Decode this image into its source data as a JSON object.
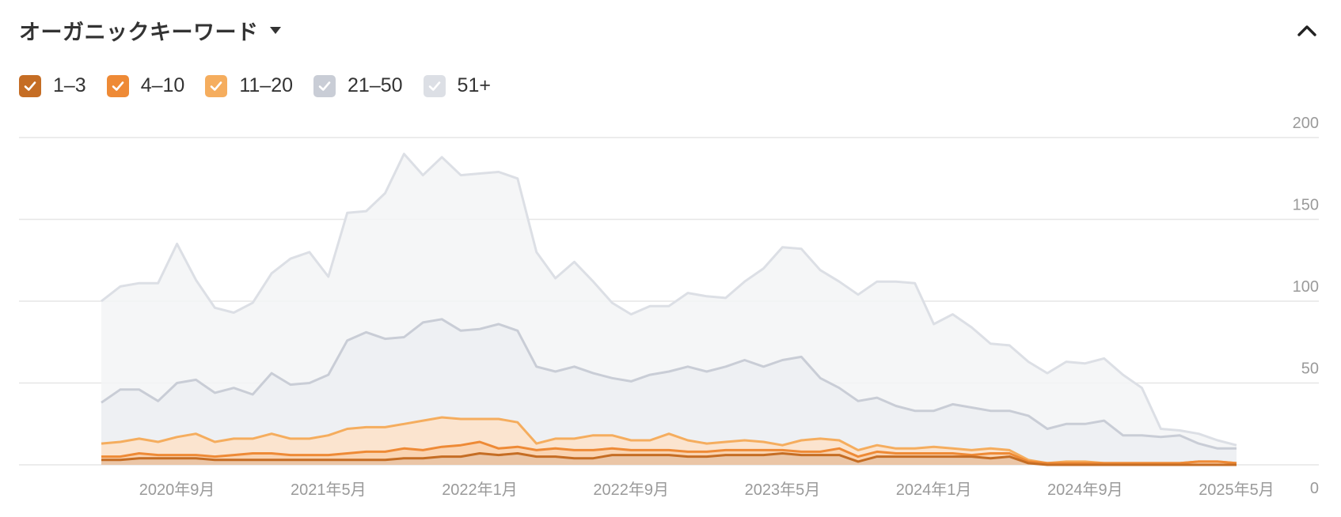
{
  "header": {
    "title": "オーガニックキーワード"
  },
  "icons": {
    "dropdown": "caret-down-icon",
    "collapse": "chevron-up-icon",
    "check": "check-icon"
  },
  "legend": [
    {
      "label": "1–3",
      "color": "#c56d24"
    },
    {
      "label": "4–10",
      "color": "#ee8a36"
    },
    {
      "label": "11–20",
      "color": "#f5ad5e"
    },
    {
      "label": "21–50",
      "color": "#c9cdd6"
    },
    {
      "label": "51+",
      "color": "#dcdfe5"
    }
  ],
  "chart_data": {
    "type": "area",
    "stacked": false,
    "x": [
      "2020-05",
      "2020-06",
      "2020-07",
      "2020-08",
      "2020-09",
      "2020-10",
      "2020-11",
      "2020-12",
      "2021-01",
      "2021-02",
      "2021-03",
      "2021-04",
      "2021-05",
      "2021-06",
      "2021-07",
      "2021-08",
      "2021-09",
      "2021-10",
      "2021-11",
      "2021-12",
      "2022-01",
      "2022-02",
      "2022-03",
      "2022-04",
      "2022-05",
      "2022-06",
      "2022-07",
      "2022-08",
      "2022-09",
      "2022-10",
      "2022-11",
      "2022-12",
      "2023-01",
      "2023-02",
      "2023-03",
      "2023-04",
      "2023-05",
      "2023-06",
      "2023-07",
      "2023-08",
      "2023-09",
      "2023-10",
      "2023-11",
      "2023-12",
      "2024-01",
      "2024-02",
      "2024-03",
      "2024-04",
      "2024-05",
      "2024-06",
      "2024-07",
      "2024-08",
      "2024-09",
      "2024-10",
      "2024-11",
      "2024-12",
      "2025-01",
      "2025-02",
      "2025-03",
      "2025-04",
      "2025-05"
    ],
    "xticks": [
      "2020年9月",
      "2021年5月",
      "2022年1月",
      "2022年9月",
      "2023年5月",
      "2024年1月",
      "2024年9月",
      "2025年5月"
    ],
    "xtick_dates": [
      "2020-09",
      "2021-05",
      "2022-01",
      "2022-09",
      "2023-05",
      "2024-01",
      "2024-09",
      "2025-05"
    ],
    "yticks": [
      0,
      50,
      100,
      150,
      200
    ],
    "ylim": [
      0,
      200
    ],
    "grid": true,
    "legend_position": "top-left",
    "series": [
      {
        "name": "51+",
        "color": "#dcdfe5",
        "fill": "#f3f4f6",
        "values": [
          100,
          109,
          111,
          111,
          135,
          113,
          96,
          93,
          99,
          117,
          126,
          130,
          115,
          154,
          155,
          166,
          190,
          177,
          188,
          177,
          178,
          179,
          175,
          130,
          114,
          124,
          112,
          99,
          92,
          97,
          97,
          105,
          103,
          102,
          112,
          120,
          133,
          132,
          119,
          112,
          104,
          112,
          112,
          111,
          86,
          92,
          84,
          74,
          73,
          63,
          56,
          63,
          62,
          65,
          55,
          47,
          22,
          21,
          19,
          15,
          12
        ],
        "visible": true
      },
      {
        "name": "21–50",
        "color": "#c9cdd6",
        "fill": "#eceef2",
        "values": [
          38,
          46,
          46,
          39,
          50,
          52,
          44,
          47,
          43,
          56,
          49,
          50,
          55,
          76,
          81,
          77,
          78,
          87,
          89,
          82,
          83,
          86,
          82,
          60,
          57,
          60,
          56,
          53,
          51,
          55,
          57,
          60,
          57,
          60,
          64,
          60,
          64,
          66,
          53,
          47,
          39,
          41,
          36,
          33,
          33,
          37,
          35,
          33,
          33,
          30,
          22,
          25,
          25,
          27,
          18,
          18,
          17,
          18,
          13,
          10,
          10
        ],
        "visible": true
      },
      {
        "name": "11–20",
        "color": "#f5ad5e",
        "fill": "#fde2c8",
        "values": [
          13,
          14,
          16,
          14,
          17,
          19,
          14,
          16,
          16,
          19,
          16,
          16,
          18,
          22,
          23,
          23,
          25,
          27,
          29,
          28,
          28,
          28,
          26,
          13,
          16,
          16,
          18,
          18,
          15,
          15,
          19,
          15,
          13,
          14,
          15,
          14,
          12,
          15,
          16,
          15,
          9,
          12,
          10,
          10,
          11,
          10,
          9,
          10,
          9,
          3,
          1,
          2,
          2,
          1,
          1,
          1,
          1,
          1,
          2,
          2,
          1
        ],
        "visible": true
      },
      {
        "name": "4–10",
        "color": "#ee8a36",
        "fill": "#f9d1ad",
        "values": [
          5,
          5,
          7,
          6,
          6,
          6,
          5,
          6,
          7,
          7,
          6,
          6,
          6,
          7,
          8,
          8,
          10,
          9,
          11,
          12,
          14,
          10,
          11,
          9,
          10,
          9,
          9,
          10,
          9,
          9,
          9,
          8,
          8,
          9,
          9,
          9,
          9,
          8,
          8,
          10,
          5,
          8,
          7,
          7,
          7,
          7,
          6,
          7,
          7,
          2,
          1,
          1,
          1,
          1,
          1,
          1,
          1,
          1,
          2,
          2,
          1
        ],
        "visible": true
      },
      {
        "name": "1–3",
        "color": "#c56d24",
        "fill": "#e8c3a4",
        "values": [
          3,
          3,
          4,
          4,
          4,
          4,
          3,
          3,
          3,
          3,
          3,
          3,
          3,
          3,
          3,
          3,
          4,
          4,
          5,
          5,
          7,
          6,
          7,
          5,
          5,
          4,
          4,
          6,
          6,
          6,
          6,
          5,
          5,
          6,
          6,
          6,
          7,
          6,
          6,
          6,
          2,
          5,
          5,
          5,
          5,
          5,
          5,
          4,
          5,
          1,
          0,
          0,
          0,
          0,
          0,
          0,
          0,
          0,
          0,
          0,
          0
        ],
        "visible": true
      }
    ]
  }
}
